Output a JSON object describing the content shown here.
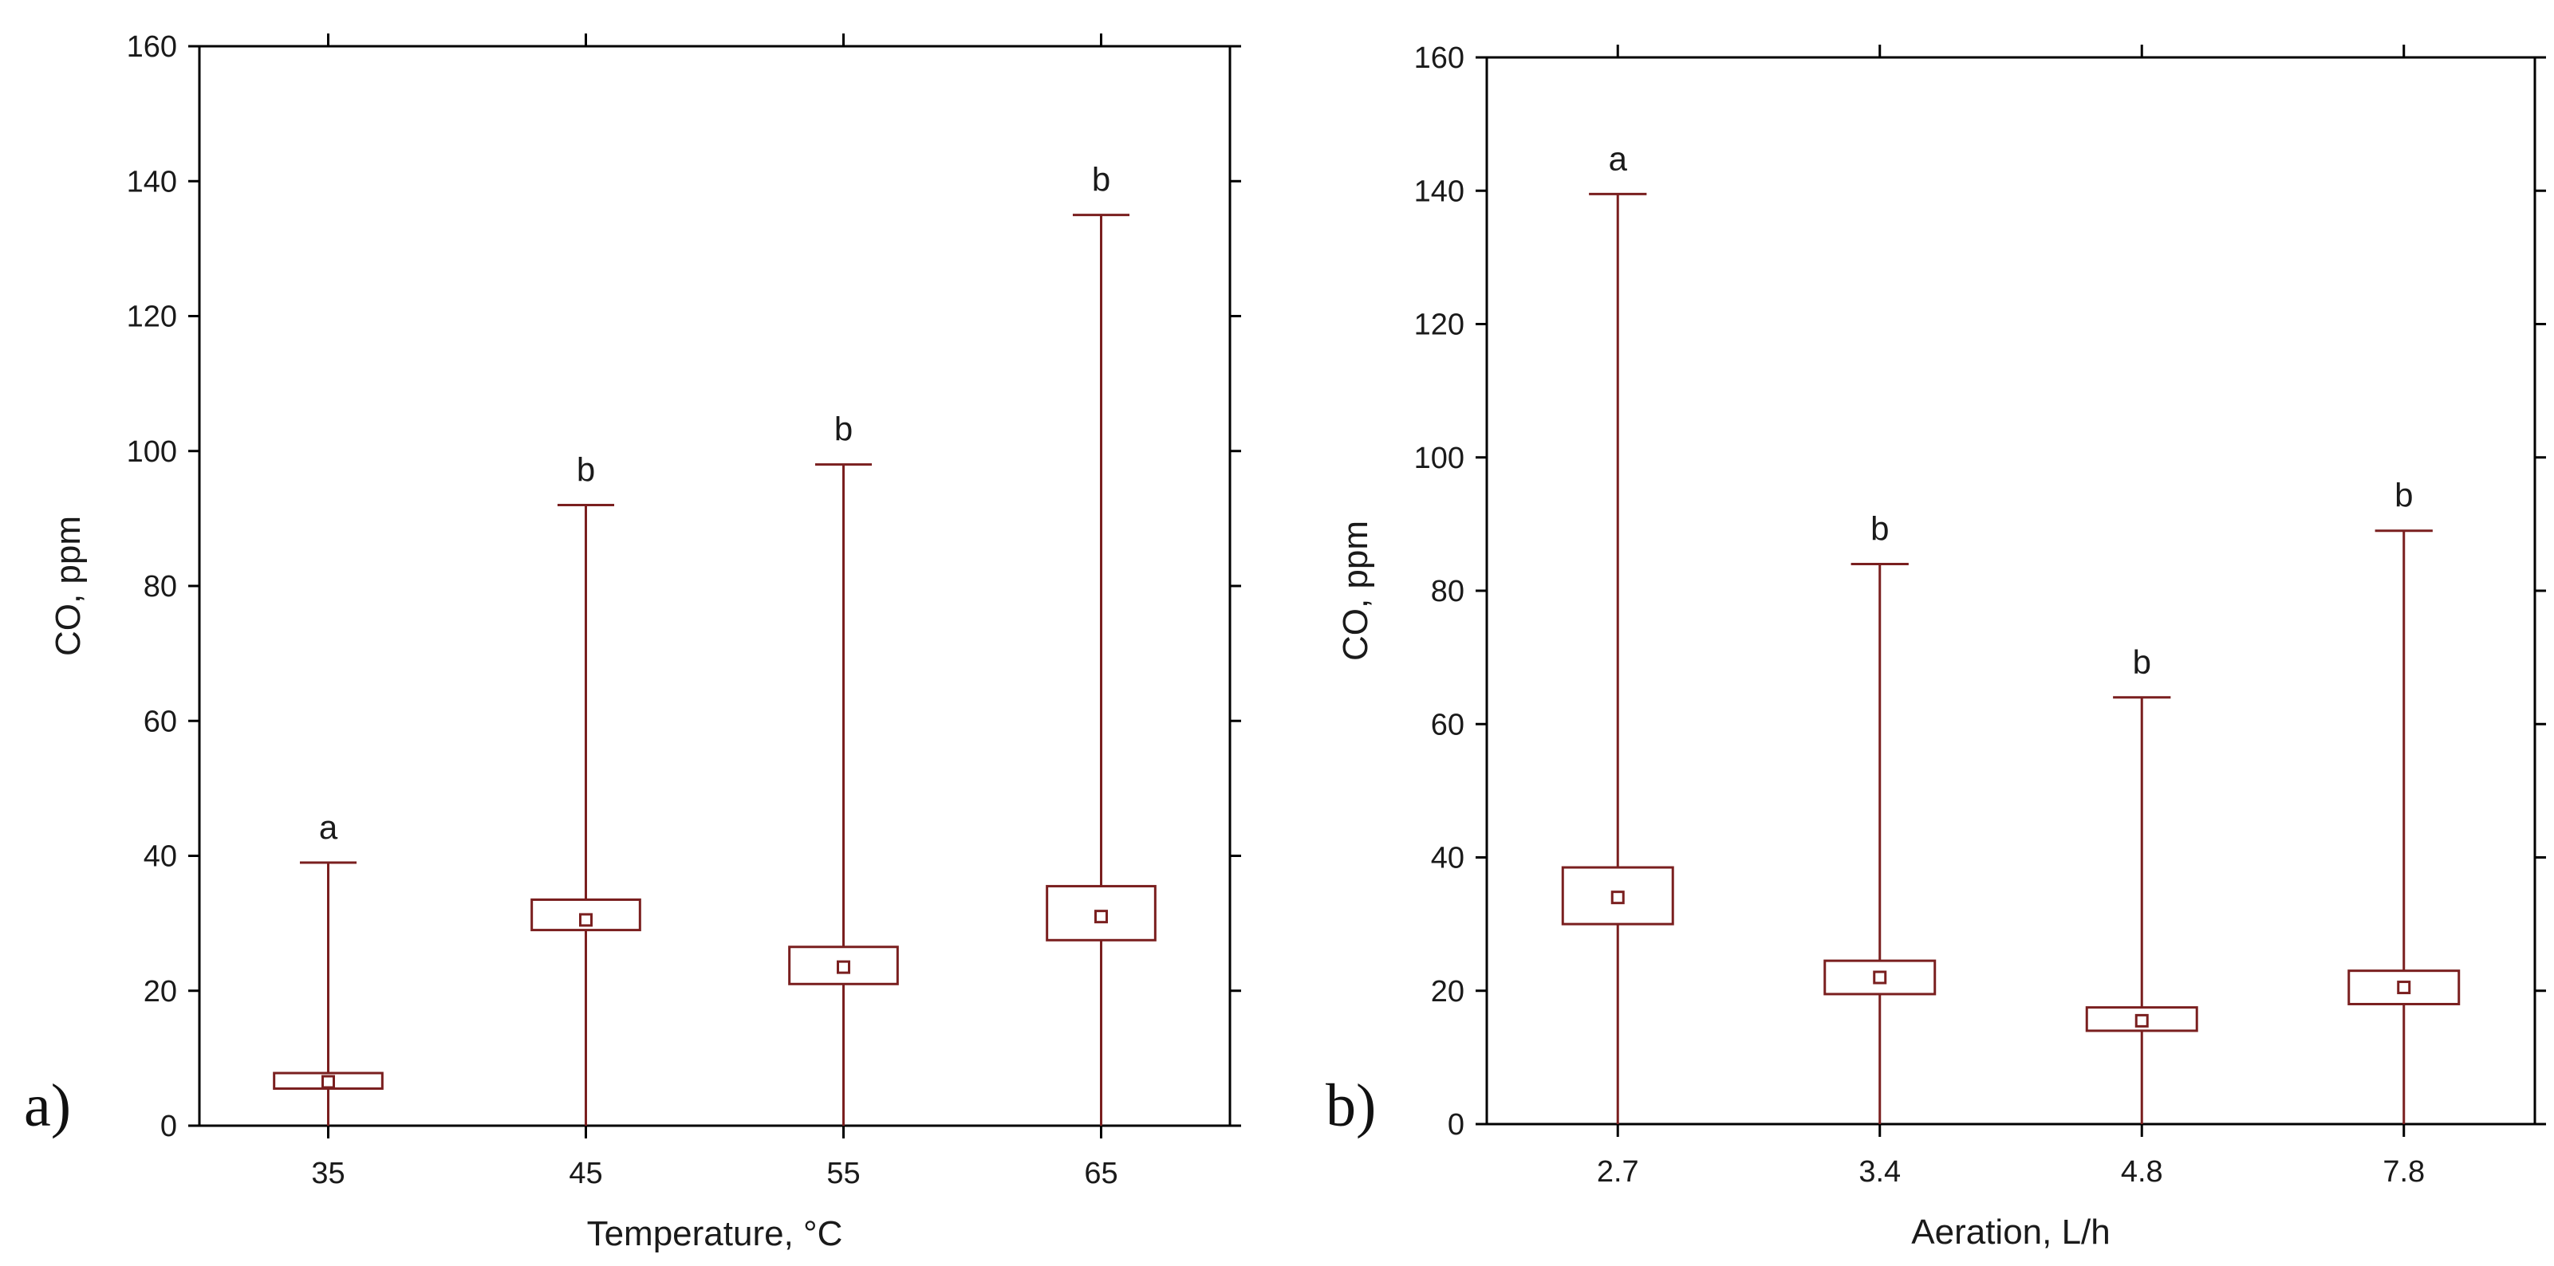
{
  "figure": {
    "panel_labels": [
      "a)",
      "b)"
    ]
  },
  "chart_data": [
    {
      "type": "box",
      "xlabel": "Temperature, °C",
      "ylabel": "CO, ppm",
      "ylim": [
        0,
        160
      ],
      "yticks": [
        0,
        20,
        40,
        60,
        80,
        100,
        120,
        140,
        160
      ],
      "categories": [
        "35",
        "45",
        "55",
        "65"
      ],
      "boxes": [
        {
          "category": "35",
          "whisker_low": 0,
          "q1": 5.5,
          "median": 6.5,
          "q3": 7.8,
          "whisker_high": 39,
          "letter": "a"
        },
        {
          "category": "45",
          "whisker_low": 0,
          "q1": 29,
          "median": 30.5,
          "q3": 33.5,
          "whisker_high": 92,
          "letter": "b"
        },
        {
          "category": "55",
          "whisker_low": 0,
          "q1": 21,
          "median": 23.5,
          "q3": 26.5,
          "whisker_high": 98,
          "letter": "b"
        },
        {
          "category": "65",
          "whisker_low": 0,
          "q1": 27.5,
          "median": 31,
          "q3": 35.5,
          "whisker_high": 135,
          "letter": "b"
        }
      ],
      "color": "#7a1f1f",
      "grid": false
    },
    {
      "type": "box",
      "xlabel": "Aeration, L/h",
      "ylabel": "CO, ppm",
      "ylim": [
        0,
        160
      ],
      "yticks": [
        0,
        20,
        40,
        60,
        80,
        100,
        120,
        140,
        160
      ],
      "categories": [
        "2.7",
        "3.4",
        "4.8",
        "7.8"
      ],
      "boxes": [
        {
          "category": "2.7",
          "whisker_low": 0,
          "q1": 30,
          "median": 34,
          "q3": 38.5,
          "whisker_high": 139.5,
          "letter": "a"
        },
        {
          "category": "3.4",
          "whisker_low": 0,
          "q1": 19.5,
          "median": 22,
          "q3": 24.5,
          "whisker_high": 84,
          "letter": "b"
        },
        {
          "category": "4.8",
          "whisker_low": 0,
          "q1": 14,
          "median": 15.5,
          "q3": 17.5,
          "whisker_high": 64,
          "letter": "b"
        },
        {
          "category": "7.8",
          "whisker_low": 0,
          "q1": 18,
          "median": 20.5,
          "q3": 23,
          "whisker_high": 89,
          "letter": "b"
        }
      ],
      "color": "#7a1f1f",
      "grid": false
    }
  ]
}
